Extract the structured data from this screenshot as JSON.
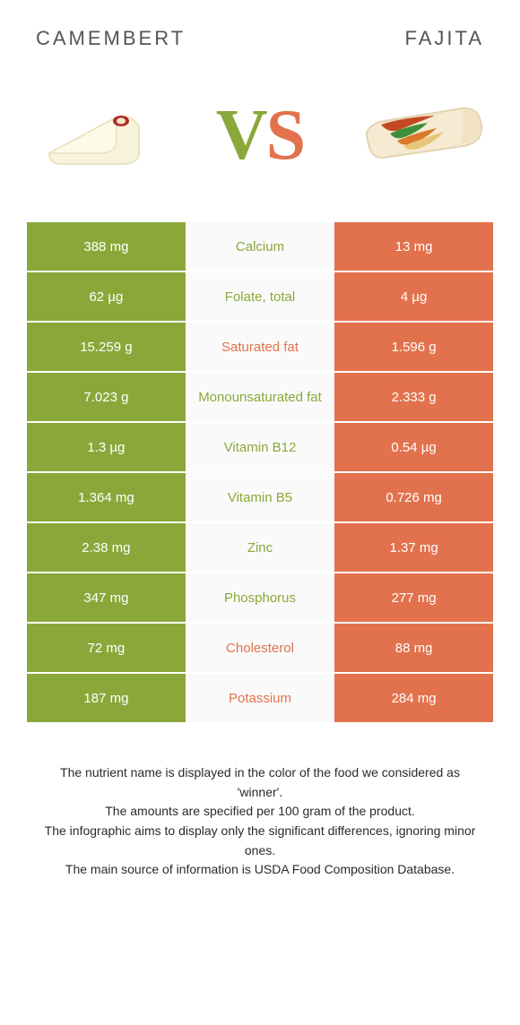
{
  "colors": {
    "left": "#8aa83a",
    "right": "#e2724d",
    "mid_bg": "#fafafa",
    "white": "#ffffff",
    "title": "#555555",
    "text": "#2a2a2a"
  },
  "foods": {
    "left": {
      "name": "Camembert"
    },
    "right": {
      "name": "Fajita"
    }
  },
  "vs": {
    "v": "V",
    "s": "S"
  },
  "comparison": {
    "rows": [
      {
        "nutrient": "Calcium",
        "left": "388 mg",
        "right": "13 mg",
        "winner": "left"
      },
      {
        "nutrient": "Folate, total",
        "left": "62 µg",
        "right": "4 µg",
        "winner": "left"
      },
      {
        "nutrient": "Saturated fat",
        "left": "15.259 g",
        "right": "1.596 g",
        "winner": "right"
      },
      {
        "nutrient": "Monounsaturated fat",
        "left": "7.023 g",
        "right": "2.333 g",
        "winner": "left"
      },
      {
        "nutrient": "Vitamin B12",
        "left": "1.3 µg",
        "right": "0.54 µg",
        "winner": "left"
      },
      {
        "nutrient": "Vitamin B5",
        "left": "1.364 mg",
        "right": "0.726 mg",
        "winner": "left"
      },
      {
        "nutrient": "Zinc",
        "left": "2.38 mg",
        "right": "1.37 mg",
        "winner": "left"
      },
      {
        "nutrient": "Phosphorus",
        "left": "347 mg",
        "right": "277 mg",
        "winner": "left"
      },
      {
        "nutrient": "Cholesterol",
        "left": "72 mg",
        "right": "88 mg",
        "winner": "right"
      },
      {
        "nutrient": "Potassium",
        "left": "187 mg",
        "right": "284 mg",
        "winner": "right"
      }
    ]
  },
  "footer": {
    "lines": [
      "The nutrient name is displayed in the color of the food we considered as 'winner'.",
      "The amounts are specified per 100 gram of the product.",
      "The infographic aims to display only the significant differences, ignoring minor ones.",
      "The main source of information is USDA Food Composition Database."
    ]
  }
}
